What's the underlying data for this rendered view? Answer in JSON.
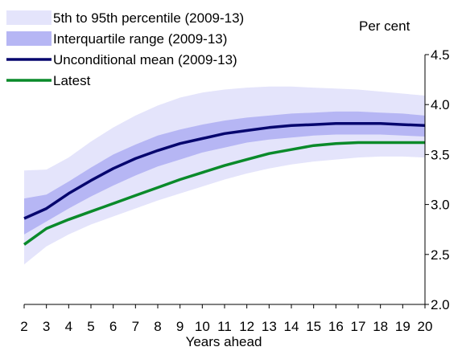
{
  "chart_data": {
    "type": "area",
    "title": "",
    "xlabel": "Years ahead",
    "ylabel": "Per cent",
    "x": [
      2,
      3,
      4,
      5,
      6,
      7,
      8,
      9,
      10,
      11,
      12,
      13,
      14,
      15,
      16,
      17,
      18,
      19,
      20
    ],
    "x_tick_labels": [
      "2",
      "3",
      "4",
      "5",
      "6",
      "7",
      "8",
      "9",
      "10",
      "11",
      "12",
      "13",
      "14",
      "15",
      "16",
      "17",
      "18",
      "19",
      "20"
    ],
    "ylim": [
      2.0,
      4.5
    ],
    "y_ticks": [
      2.0,
      2.5,
      3.0,
      3.5,
      4.0,
      4.5
    ],
    "y_tick_labels": [
      "2.0",
      "2.5",
      "3.0",
      "3.5",
      "4.0",
      "4.5"
    ],
    "y_axis_side": "right",
    "grid": false,
    "legend_position": "top-left",
    "series": [
      {
        "name": "5th to 95th percentile (2009-13)",
        "kind": "band",
        "color": "#e4e4fb",
        "lower": [
          2.4,
          2.58,
          2.7,
          2.8,
          2.88,
          2.96,
          3.04,
          3.11,
          3.18,
          3.25,
          3.31,
          3.36,
          3.4,
          3.43,
          3.45,
          3.47,
          3.48,
          3.48,
          3.47
        ],
        "upper": [
          3.34,
          3.35,
          3.47,
          3.63,
          3.77,
          3.89,
          3.99,
          4.07,
          4.12,
          4.15,
          4.17,
          4.18,
          4.18,
          4.17,
          4.16,
          4.15,
          4.13,
          4.11,
          4.09
        ]
      },
      {
        "name": "Interquartile range (2009-13)",
        "kind": "band",
        "color": "#b6b6f4",
        "lower": [
          2.7,
          2.83,
          2.96,
          3.08,
          3.19,
          3.29,
          3.38,
          3.45,
          3.52,
          3.57,
          3.62,
          3.65,
          3.67,
          3.69,
          3.7,
          3.7,
          3.7,
          3.69,
          3.68
        ],
        "upper": [
          3.06,
          3.1,
          3.23,
          3.37,
          3.5,
          3.6,
          3.69,
          3.75,
          3.8,
          3.84,
          3.87,
          3.89,
          3.91,
          3.92,
          3.93,
          3.93,
          3.92,
          3.91,
          3.89
        ]
      },
      {
        "name": "Unconditional mean (2009-13)",
        "kind": "line",
        "color": "#06066e",
        "values": [
          2.86,
          2.96,
          3.11,
          3.24,
          3.36,
          3.46,
          3.54,
          3.61,
          3.66,
          3.71,
          3.74,
          3.77,
          3.79,
          3.8,
          3.81,
          3.81,
          3.81,
          3.8,
          3.79
        ]
      },
      {
        "name": "Latest",
        "kind": "line",
        "color": "#0a8a2a",
        "values": [
          2.6,
          2.76,
          2.85,
          2.93,
          3.01,
          3.09,
          3.17,
          3.25,
          3.32,
          3.39,
          3.45,
          3.51,
          3.55,
          3.59,
          3.61,
          3.62,
          3.62,
          3.62,
          3.62
        ]
      }
    ]
  }
}
